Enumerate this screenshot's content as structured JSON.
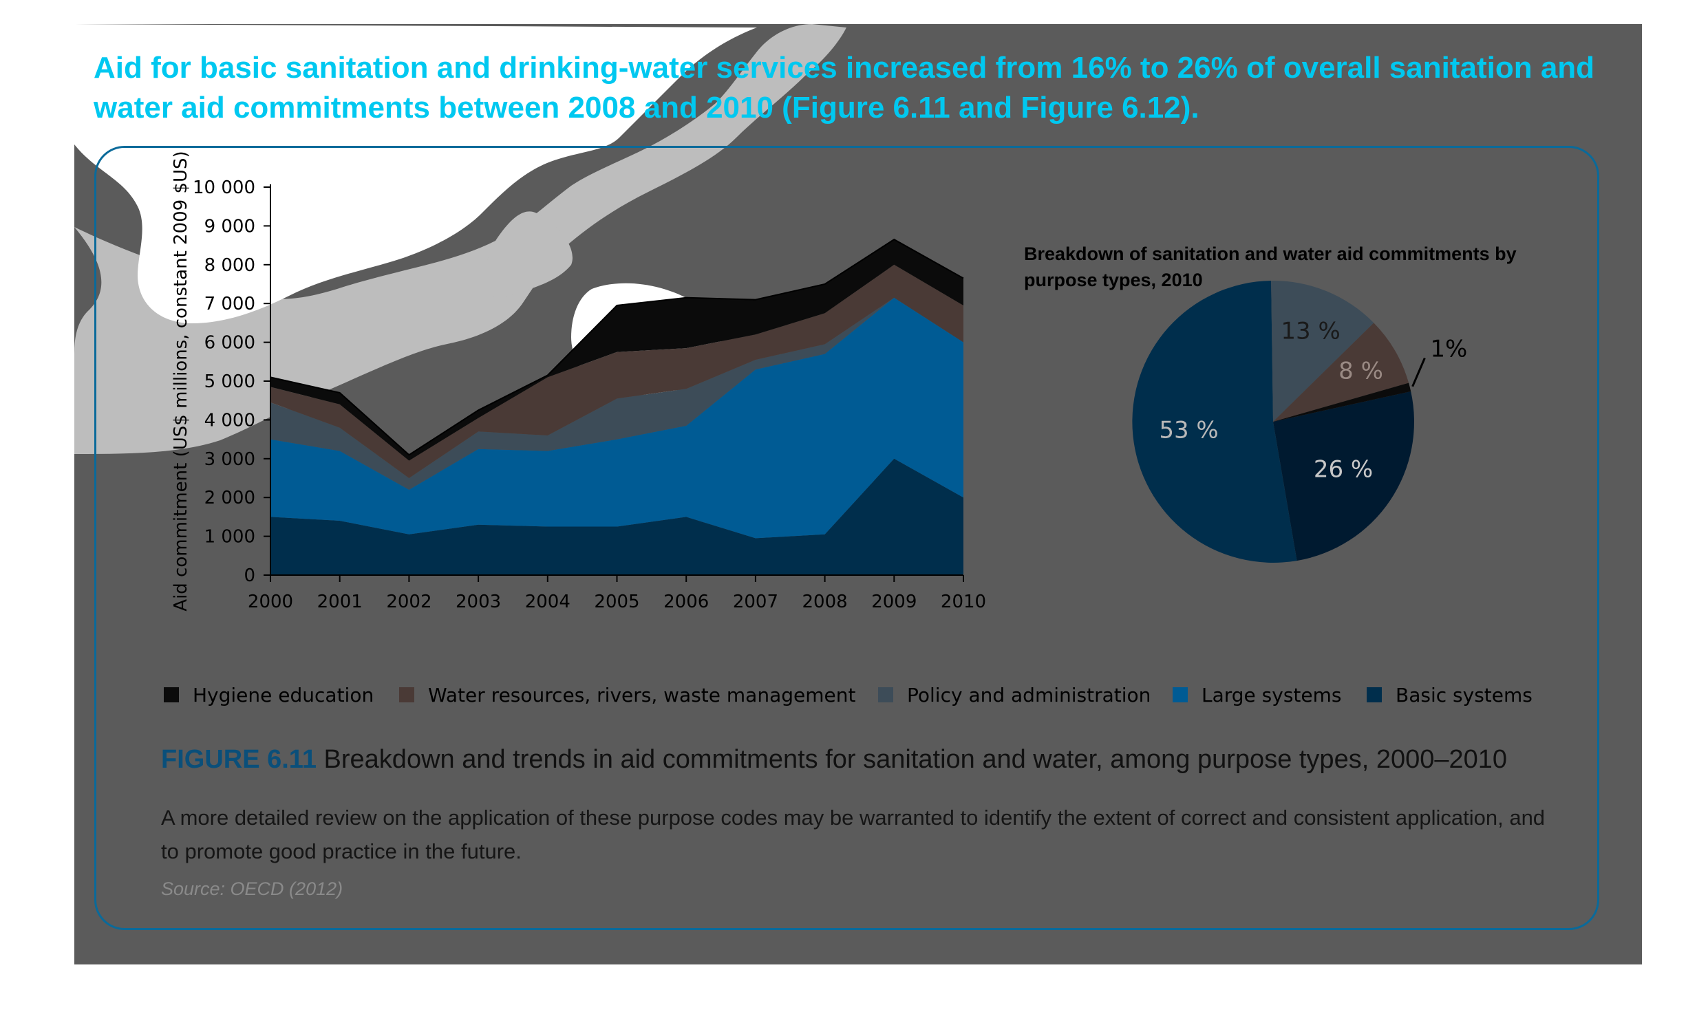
{
  "headline": "Aid for basic sanitation and drinking-water services increased from 16% to 26% of overall sanitation and water aid commitments between 2008 and 2010 (Figure 6.11 and Figure 6.12).",
  "colors": {
    "hygiene_education": "#0b0b0b",
    "water_resources": "#4a3a36",
    "policy_administration": "#3d4c58",
    "large_systems": "#005b94",
    "basic_systems": "#002e4c",
    "bottom_band": "#001a30",
    "headline": "#00c8f0",
    "figure_border": "#0a6a9a"
  },
  "chart_data": [
    {
      "type": "area",
      "stacked": true,
      "x": [
        "2000",
        "2001",
        "2002",
        "2003",
        "2004",
        "2005",
        "2006",
        "2007",
        "2008",
        "2009",
        "2010"
      ],
      "ylabel": "Aid commitment (US$ millions, constant 2009 $US)",
      "ylim": [
        0,
        10000
      ],
      "yticks": [
        "0",
        "1 000",
        "2 000",
        "3 000",
        "4 000",
        "5 000",
        "6 000",
        "7 000",
        "8 000",
        "9 000",
        "10 000"
      ],
      "stack_totals": [
        5100,
        4700,
        3100,
        4250,
        5150,
        6950,
        7150,
        7100,
        7500,
        8650,
        7650
      ],
      "series": [
        {
          "name": "Basic systems",
          "values": [
            1500,
            1400,
            1050,
            1300,
            1250,
            1250,
            1500,
            950,
            1050,
            3000,
            2000
          ]
        },
        {
          "name": "Large systems",
          "values": [
            2000,
            1800,
            1150,
            1950,
            1950,
            2250,
            2350,
            4350,
            4650,
            4150,
            4000
          ]
        },
        {
          "name": "Policy and administration",
          "values": [
            950,
            600,
            300,
            450,
            400,
            1050,
            950,
            250,
            250,
            0,
            0
          ]
        },
        {
          "name": "Water resources, rivers, waste management",
          "values": [
            400,
            600,
            450,
            350,
            1500,
            1200,
            1050,
            650,
            800,
            850,
            950
          ]
        },
        {
          "name": "Hygiene education",
          "values": [
            250,
            300,
            150,
            200,
            50,
            1200,
            1300,
            900,
            750,
            650,
            700
          ]
        }
      ],
      "legend": "bottom"
    },
    {
      "type": "pie",
      "title": "Breakdown of sanitation and water aid commitments by purpose types, 2010",
      "slices": [
        {
          "name": "Basic systems",
          "label": "26 %",
          "value": 26
        },
        {
          "name": "Large systems",
          "label": "53 %",
          "value": 53
        },
        {
          "name": "Policy and administration",
          "label": "13 %",
          "value": 13
        },
        {
          "name": "Water resources, rivers, waste management",
          "label": "8 %",
          "value": 8
        },
        {
          "name": "Hygiene education",
          "label": "1%",
          "value": 1
        }
      ]
    }
  ],
  "legend_items": [
    {
      "label": "Hygiene education",
      "color": "#0b0b0b"
    },
    {
      "label": "Water resources, rivers, waste management",
      "color": "#4a3a36"
    },
    {
      "label": "Policy and administration",
      "color": "#3d4c58"
    },
    {
      "label": "Large systems",
      "color": "#005b94"
    },
    {
      "label": "Basic systems",
      "color": "#002e4c"
    }
  ],
  "caption": {
    "number": "FIGURE 6.11",
    "text": " Breakdown and trends in aid commitments for sanitation and water, among purpose types, 2000–2010",
    "description": "A more detailed review on the application of these purpose codes may be warranted to identify the extent of correct and consistent application, and to promote good practice in the future.",
    "source": "Source: OECD (2012)"
  }
}
